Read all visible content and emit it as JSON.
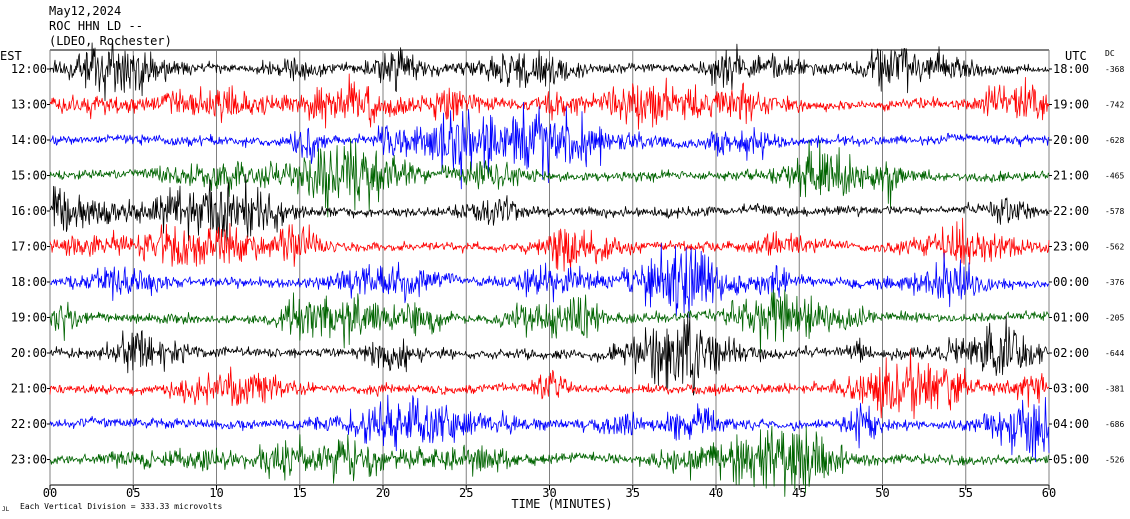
{
  "header": {
    "date": "May12,2024",
    "station": "ROC HHN LD --",
    "network": "(LDEO, Rochester)"
  },
  "left_axis_label": "EST",
  "right_axis_label": "UTC",
  "dc_label": "DC",
  "footer": {
    "scale_note": "Each Vertical Division =  333.33 microvolts",
    "corner_mark": "JL"
  },
  "colors": {
    "black": "#000000",
    "red": "#ff0000",
    "blue": "#0000ff",
    "green": "#006400",
    "grid": "#808080"
  },
  "chart_data": {
    "type": "line",
    "title": "ROC HHN LD --",
    "xlabel": "TIME (MINUTES)",
    "ylabel": "",
    "xlim": [
      0,
      60
    ],
    "x_ticks": [
      "00",
      "05",
      "10",
      "15",
      "20",
      "25",
      "30",
      "35",
      "40",
      "45",
      "50",
      "55",
      "60"
    ],
    "traces": [
      {
        "est": "12:00",
        "utc": "18:00",
        "dc": "-368",
        "color": "black"
      },
      {
        "est": "13:00",
        "utc": "19:00",
        "dc": "-742",
        "color": "red"
      },
      {
        "est": "14:00",
        "utc": "20:00",
        "dc": "-628",
        "color": "blue"
      },
      {
        "est": "15:00",
        "utc": "21:00",
        "dc": "-465",
        "color": "green"
      },
      {
        "est": "16:00",
        "utc": "22:00",
        "dc": "-578",
        "color": "black"
      },
      {
        "est": "17:00",
        "utc": "23:00",
        "dc": "-562",
        "color": "red"
      },
      {
        "est": "18:00",
        "utc": "00:00",
        "dc": "-376",
        "color": "blue"
      },
      {
        "est": "19:00",
        "utc": "01:00",
        "dc": "-205",
        "color": "green"
      },
      {
        "est": "20:00",
        "utc": "02:00",
        "dc": "-644",
        "color": "black"
      },
      {
        "est": "21:00",
        "utc": "03:00",
        "dc": "-381",
        "color": "red"
      },
      {
        "est": "22:00",
        "utc": "04:00",
        "dc": "-686",
        "color": "blue"
      },
      {
        "est": "23:00",
        "utc": "05:00",
        "dc": "-526",
        "color": "green"
      }
    ]
  }
}
